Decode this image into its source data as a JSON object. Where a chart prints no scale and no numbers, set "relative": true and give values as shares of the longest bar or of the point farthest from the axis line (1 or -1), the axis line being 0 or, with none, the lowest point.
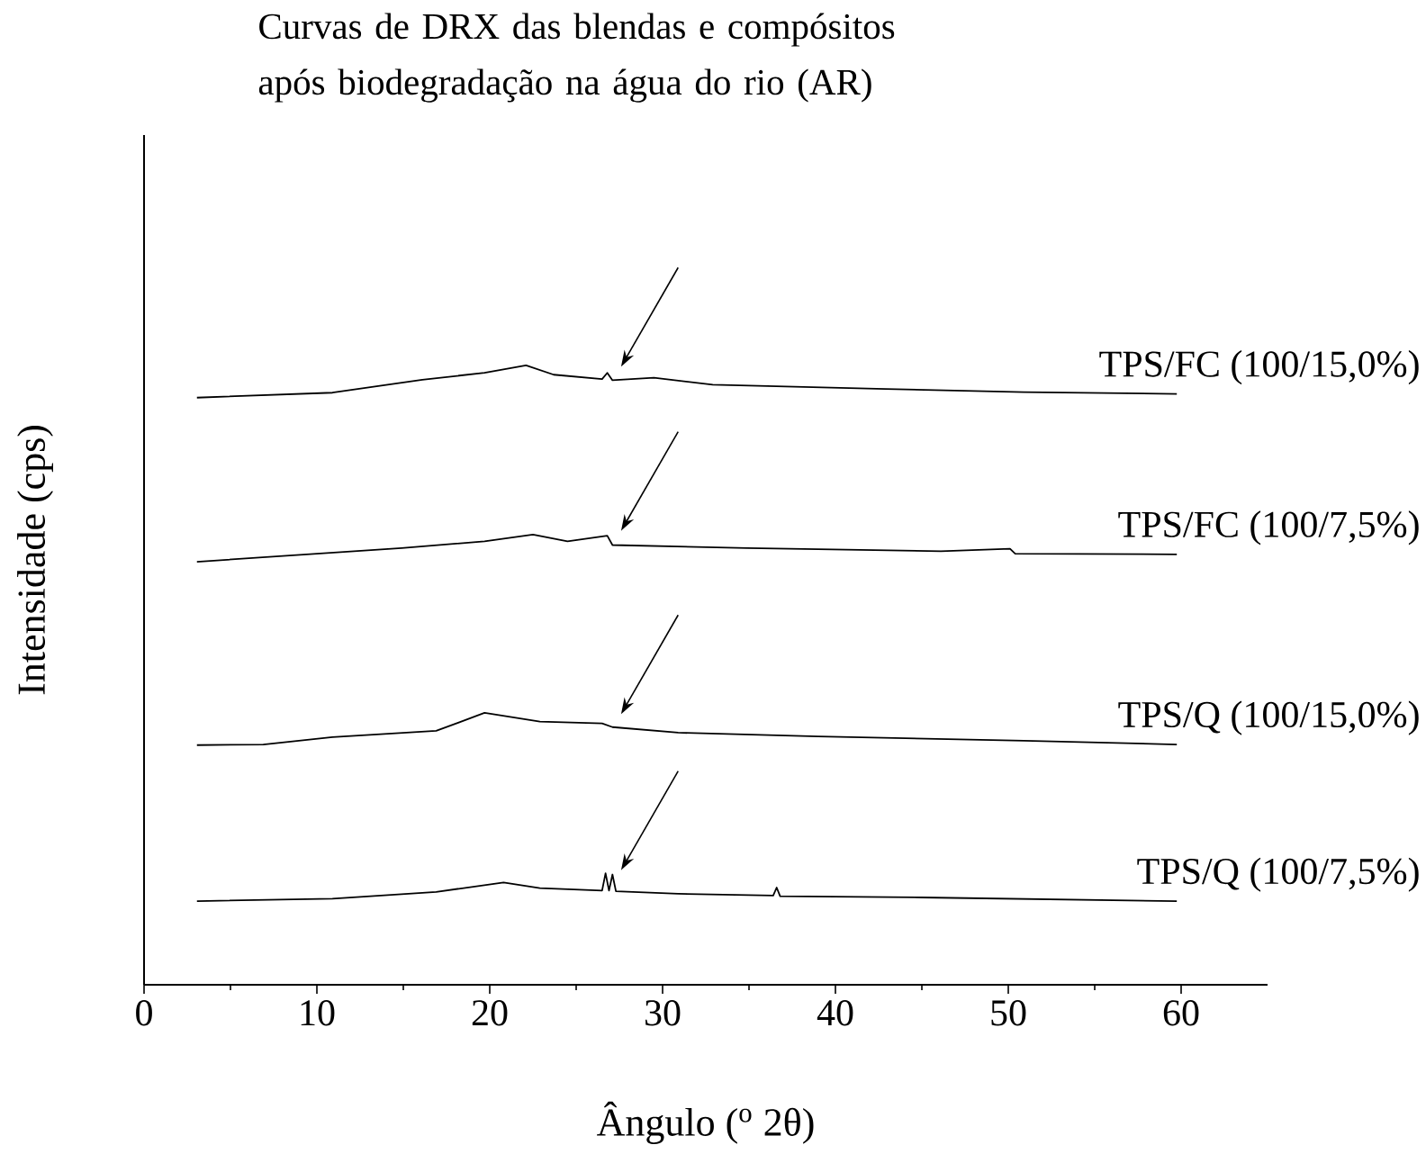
{
  "chart_data": {
    "type": "line",
    "title": "Curvas de DRX das blendas e compósitos após biodegradação na água do rio (AR)",
    "xlabel": "Ângulo ($^{o}$ 2θ)",
    "ylabel": "Intensidade (cps)",
    "relative": true,
    "xlim": [
      0,
      65
    ],
    "xticks": [
      0,
      10,
      20,
      30,
      40,
      50,
      60
    ],
    "grid": false,
    "marker": "none",
    "line_style": "solid",
    "series": [
      {
        "name": "TPS/FC (100/15,0%)",
        "color": "#000000",
        "x": [
          3.06,
          10.9,
          16.1,
          19.7,
          22.1,
          23.7,
          26.5,
          26.8,
          27.1,
          29.5,
          32.9,
          42.9,
          50.9,
          59.75
        ],
        "values": [
          0.948,
          0.956,
          0.977,
          0.988,
          1,
          0.985,
          0.978,
          0.988,
          0.976,
          0.98,
          0.969,
          0.962,
          0.957,
          0.954
        ]
      },
      {
        "name": "TPS/FC (100/7,5%)",
        "color": "#000000",
        "x": [
          3.06,
          14.9,
          19.7,
          22.5,
          24.5,
          26.8,
          27.1,
          34.9,
          46.1,
          50.1,
          50.4,
          59.75
        ],
        "values": [
          0.683,
          0.705,
          0.716,
          0.727,
          0.716,
          0.725,
          0.71,
          0.705,
          0.7,
          0.704,
          0.696,
          0.695
        ]
      },
      {
        "name": "TPS/Q (100/15,0%)",
        "color": "#000000",
        "x": [
          3.06,
          6.9,
          10.9,
          16.9,
          19.7,
          22.9,
          26.5,
          27.1,
          30.9,
          39,
          50.9,
          59.75
        ],
        "values": [
          0.387,
          0.388,
          0.4,
          0.41,
          0.439,
          0.425,
          0.422,
          0.416,
          0.407,
          0.401,
          0.394,
          0.388
        ]
      },
      {
        "name": "TPS/Q (100/7,5%)",
        "color": "#000000",
        "x": [
          3.06,
          10.9,
          16.9,
          20.8,
          22.9,
          26.5,
          26.7,
          26.9,
          27.1,
          27.3,
          30.9,
          36.4,
          36.6,
          36.8,
          45.0,
          59.75
        ],
        "values": [
          0.135,
          0.139,
          0.15,
          0.165,
          0.156,
          0.152,
          0.18,
          0.152,
          0.178,
          0.151,
          0.147,
          0.144,
          0.157,
          0.143,
          0.141,
          0.135
        ]
      }
    ]
  }
}
